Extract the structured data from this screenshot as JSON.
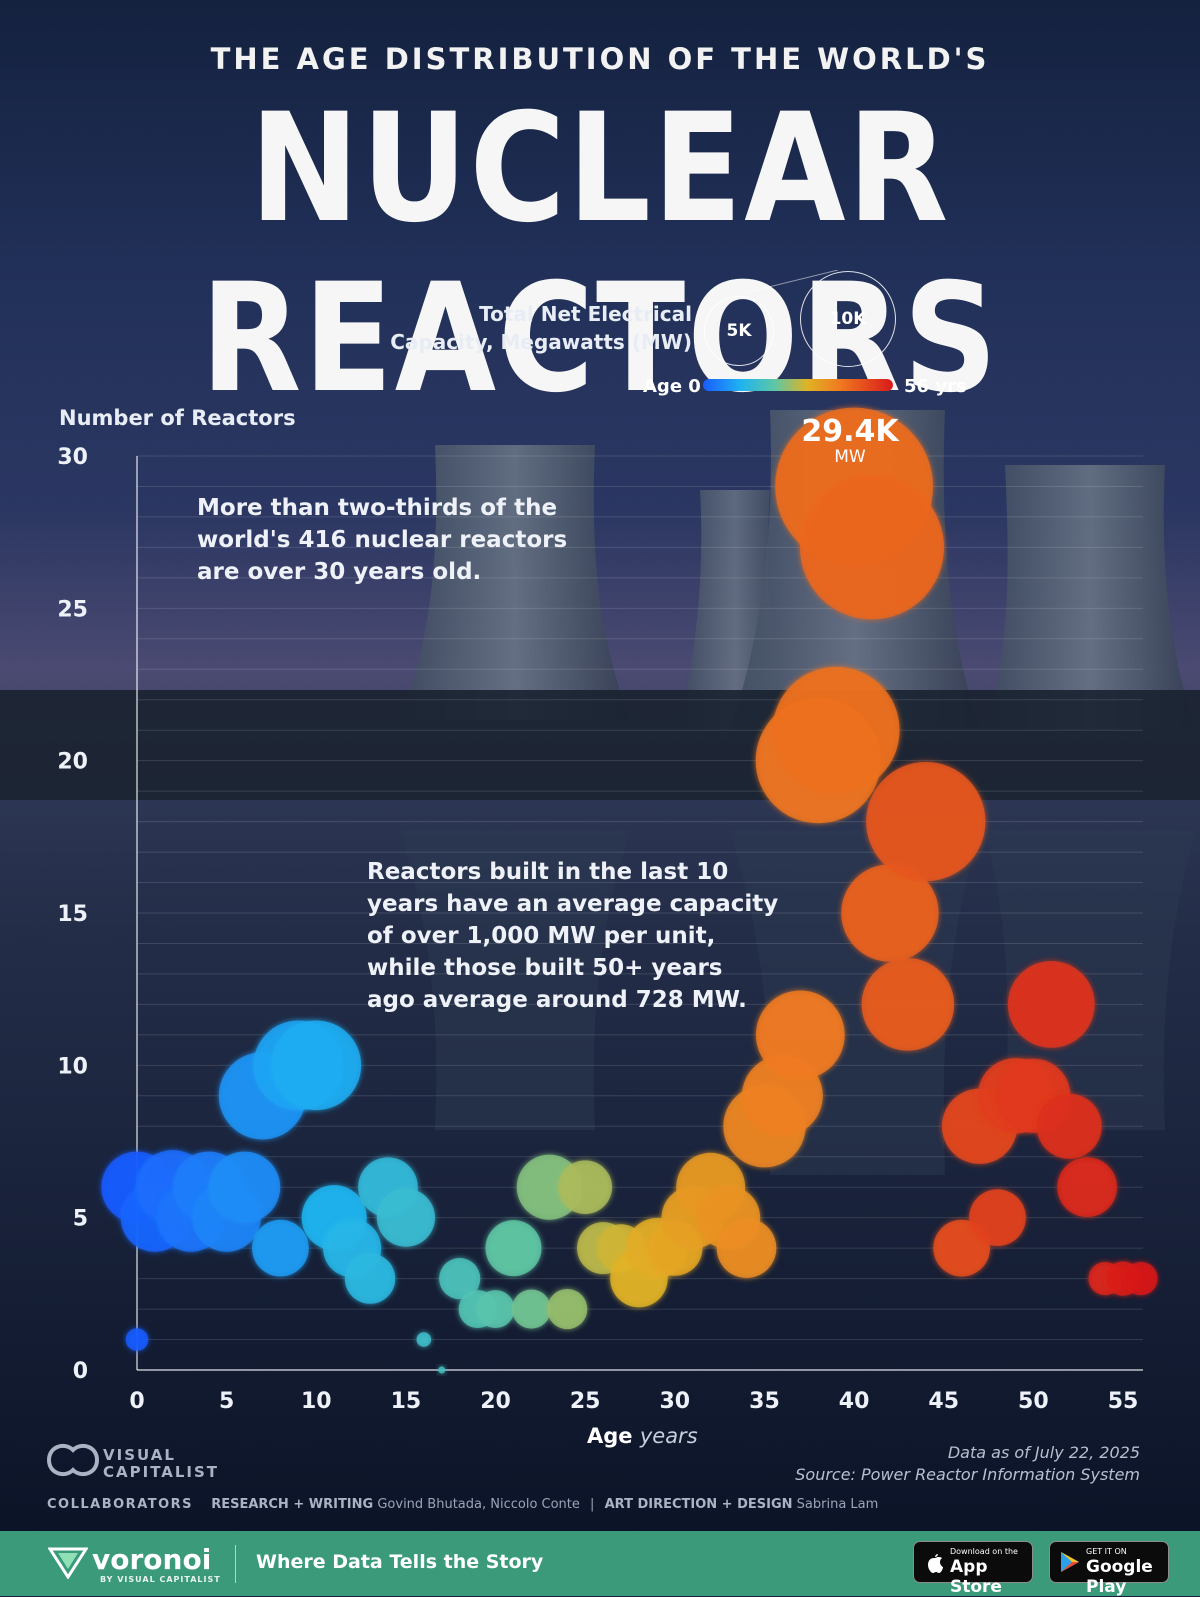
{
  "header": {
    "supertitle": "THE AGE DISTRIBUTION OF THE WORLD'S",
    "title": "NUCLEAR REACTORS"
  },
  "legend": {
    "size_title_line1": "Total Net Electrical",
    "size_title_line2": "Capacity, Megawatts (MW)",
    "size_small": "5K",
    "size_large": "10K",
    "age_start": "Age 0",
    "age_end": "56 yrs",
    "color_young": "#1a5cff",
    "color_old": "#d81a1a"
  },
  "annotations": {
    "top_note_line1": "More than two-thirds of the",
    "top_note_line2": "world's 416 nuclear reactors",
    "top_note_line3": "are over 30 years old.",
    "mid_note_line1": "Reactors built in the last 10",
    "mid_note_line2": "years have an average capacity",
    "mid_note_line3": "of over 1,000 MW per unit,",
    "mid_note_line4": "while those built 50+ years",
    "mid_note_line5": "ago average around 728 MW.",
    "peak_value": "29.4K",
    "peak_unit": "MW"
  },
  "chart_data": {
    "type": "scatter",
    "title": "THE AGE DISTRIBUTION OF THE WORLD'S NUCLEAR REACTORS",
    "xlabel": "Age",
    "xlabel_unit": "years",
    "ylabel": "Number of Reactors",
    "xlim": [
      0,
      55
    ],
    "ylim": [
      0,
      30
    ],
    "x_ticks": [
      "0",
      "5",
      "10",
      "15",
      "20",
      "25",
      "30",
      "35",
      "40",
      "45",
      "50",
      "55"
    ],
    "y_ticks": [
      "0",
      "5",
      "10",
      "15",
      "20",
      "25",
      "30"
    ],
    "size_encoding": "Total Net Electrical Capacity, Megawatts (MW)",
    "color_encoding": "Age 0 to 56 yrs",
    "points": [
      {
        "x": 0,
        "y": 1,
        "mw": 600
      },
      {
        "x": 0,
        "y": 6,
        "mw": 6000
      },
      {
        "x": 1,
        "y": 5,
        "mw": 5500
      },
      {
        "x": 2,
        "y": 6,
        "mw": 6500
      },
      {
        "x": 3,
        "y": 5,
        "mw": 5500
      },
      {
        "x": 4,
        "y": 6,
        "mw": 6000
      },
      {
        "x": 5,
        "y": 5,
        "mw": 5500
      },
      {
        "x": 6,
        "y": 6,
        "mw": 6000
      },
      {
        "x": 7,
        "y": 9,
        "mw": 9000
      },
      {
        "x": 8,
        "y": 4,
        "mw": 3800
      },
      {
        "x": 9,
        "y": 10,
        "mw": 9500
      },
      {
        "x": 10,
        "y": 10,
        "mw": 9500
      },
      {
        "x": 11,
        "y": 5,
        "mw": 5000
      },
      {
        "x": 12,
        "y": 4,
        "mw": 4000
      },
      {
        "x": 13,
        "y": 3,
        "mw": 3000
      },
      {
        "x": 14,
        "y": 6,
        "mw": 4200
      },
      {
        "x": 15,
        "y": 5,
        "mw": 4000
      },
      {
        "x": 16,
        "y": 1,
        "mw": 250
      },
      {
        "x": 17,
        "y": 0,
        "mw": 60
      },
      {
        "x": 18,
        "y": 3,
        "mw": 2000
      },
      {
        "x": 19,
        "y": 2,
        "mw": 1700
      },
      {
        "x": 20,
        "y": 2,
        "mw": 1700
      },
      {
        "x": 21,
        "y": 4,
        "mw": 3700
      },
      {
        "x": 22,
        "y": 2,
        "mw": 1800
      },
      {
        "x": 23,
        "y": 6,
        "mw": 5000
      },
      {
        "x": 24,
        "y": 2,
        "mw": 1900
      },
      {
        "x": 25,
        "y": 6,
        "mw": 3400
      },
      {
        "x": 26,
        "y": 4,
        "mw": 3200
      },
      {
        "x": 27,
        "y": 4,
        "mw": 2700
      },
      {
        "x": 28,
        "y": 3,
        "mw": 3900
      },
      {
        "x": 29,
        "y": 4,
        "mw": 4300
      },
      {
        "x": 30,
        "y": 4,
        "mw": 3600
      },
      {
        "x": 31,
        "y": 5,
        "mw": 4600
      },
      {
        "x": 32,
        "y": 6,
        "mw": 5600
      },
      {
        "x": 33,
        "y": 5,
        "mw": 4700
      },
      {
        "x": 34,
        "y": 4,
        "mw": 4200
      },
      {
        "x": 35,
        "y": 8,
        "mw": 8000
      },
      {
        "x": 36,
        "y": 9,
        "mw": 7700
      },
      {
        "x": 37,
        "y": 11,
        "mw": 9300
      },
      {
        "x": 38,
        "y": 20,
        "mw": 18500
      },
      {
        "x": 39,
        "y": 21,
        "mw": 19000
      },
      {
        "x": 40,
        "y": 29,
        "mw": 29400
      },
      {
        "x": 41,
        "y": 27,
        "mw": 24500
      },
      {
        "x": 42,
        "y": 15,
        "mw": 11200
      },
      {
        "x": 43,
        "y": 12,
        "mw": 10100
      },
      {
        "x": 44,
        "y": 18,
        "mw": 16800
      },
      {
        "x": 46,
        "y": 4,
        "mw": 3800
      },
      {
        "x": 47,
        "y": 8,
        "mw": 6700
      },
      {
        "x": 48,
        "y": 5,
        "mw": 3800
      },
      {
        "x": 49,
        "y": 9,
        "mw": 6700
      },
      {
        "x": 50,
        "y": 9,
        "mw": 6500
      },
      {
        "x": 51,
        "y": 12,
        "mw": 8900
      },
      {
        "x": 52,
        "y": 8,
        "mw": 5000
      },
      {
        "x": 53,
        "y": 6,
        "mw": 4200
      },
      {
        "x": 54,
        "y": 3,
        "mw": 1300
      },
      {
        "x": 55,
        "y": 3,
        "mw": 1400
      },
      {
        "x": 56,
        "y": 3,
        "mw": 1300
      }
    ]
  },
  "footer": {
    "source_line1": "Data as of July 22, 2025",
    "source_line2": "Source: Power Reactor Information System",
    "vc_line1": "VISUAL",
    "vc_line2": "CAPITALIST",
    "collaborators_label": "COLLABORATORS",
    "research_label": "RESEARCH + WRITING",
    "research_names": "Govind Bhutada, Niccolo Conte",
    "sep": "|",
    "design_label": "ART DIRECTION + DESIGN",
    "design_names": "Sabrina Lam",
    "brand": "voronoi",
    "brand_by": "BY VISUAL CAPITALIST",
    "tagline": "Where Data Tells the Story",
    "appstore_small": "Download on the",
    "appstore_big": "App Store",
    "play_small": "GET IT ON",
    "play_big": "Google Play"
  }
}
